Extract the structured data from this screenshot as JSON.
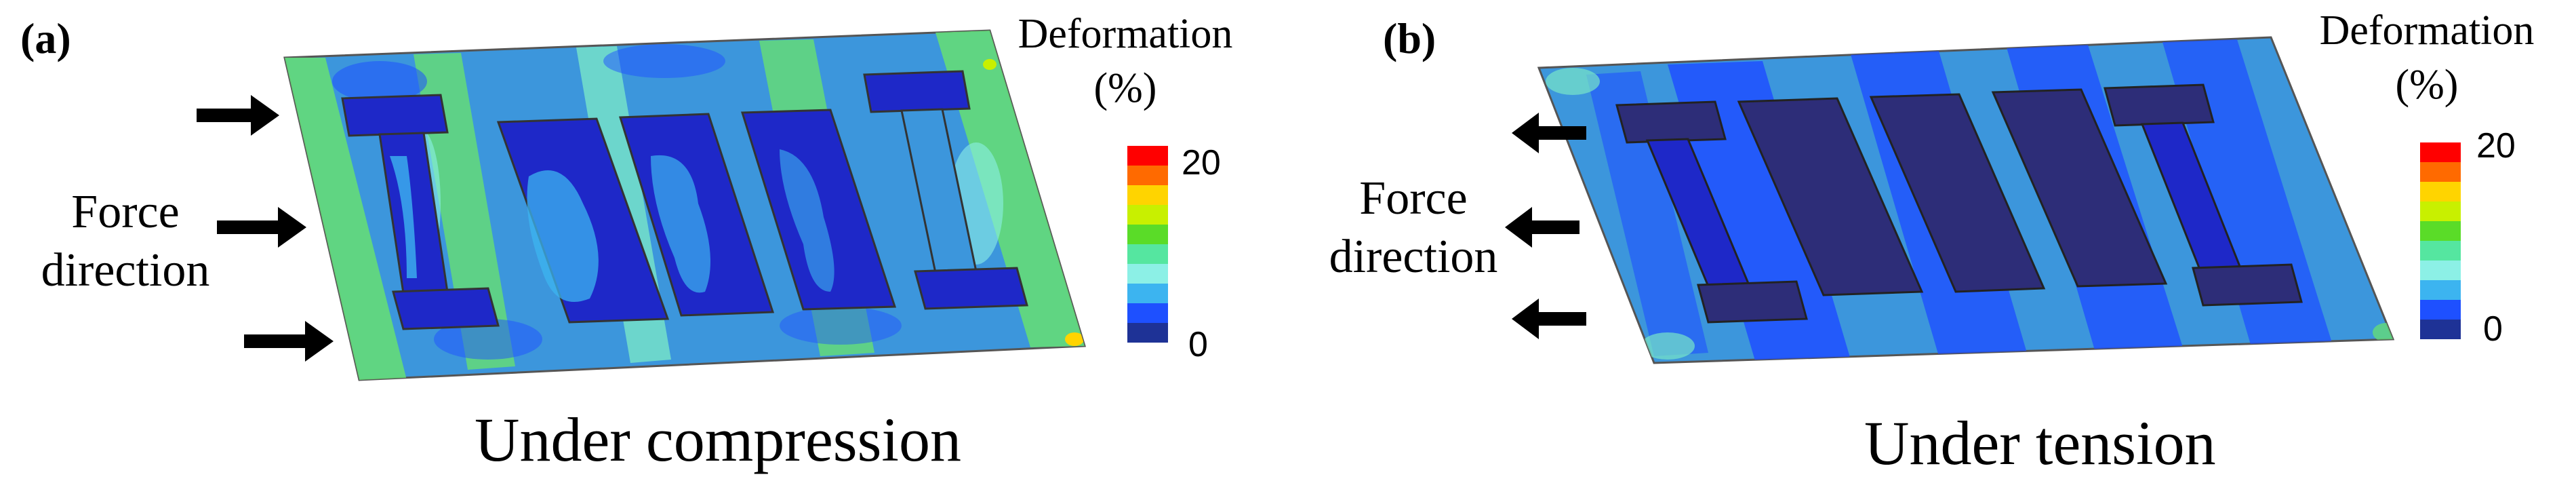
{
  "panel_a": {
    "tag": "(a)",
    "force_line1": "Force",
    "force_line2": "direction",
    "legend_title_line1": "Deformation",
    "legend_title_line2": "(%)",
    "legend_max": "20",
    "legend_min": "0",
    "caption": "Under compression"
  },
  "panel_b": {
    "tag": "(b)",
    "force_line1": "Force",
    "force_line2": "direction",
    "legend_title_line1": "Deformation",
    "legend_title_line2": "(%)",
    "legend_max": "20",
    "legend_min": "0",
    "caption": "Under tension"
  },
  "colors": {
    "colorbar": [
      "#ff0000",
      "#ff6a00",
      "#ffd400",
      "#c8f000",
      "#5adc28",
      "#55e6a0",
      "#8cf0e6",
      "#3cb4f0",
      "#1e50ff",
      "#1e3296"
    ],
    "base_blue": "#3c96dc",
    "green_zone": "#64dc78",
    "dark_blue": "#1e28c8",
    "navy": "#2d2d78",
    "light_cyan": "#78e6c8"
  }
}
